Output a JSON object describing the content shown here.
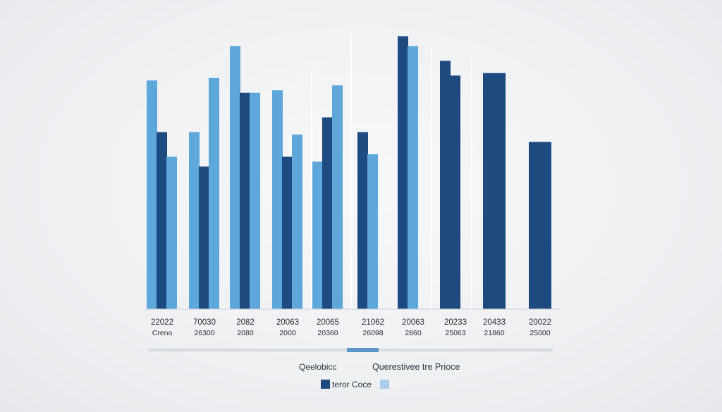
{
  "chart_data": {
    "type": "bar",
    "groups": [
      {
        "label": "22022",
        "sublabel": "Creno",
        "bars": [
          {
            "color": "light",
            "value": 93
          },
          {
            "color": "dark",
            "value": 72
          },
          {
            "color": "light",
            "value": 62
          }
        ]
      },
      {
        "label": "70030",
        "sublabel": "26300",
        "bars": [
          {
            "color": "light",
            "value": 72
          },
          {
            "color": "dark",
            "value": 58
          },
          {
            "color": "light",
            "value": 94
          }
        ]
      },
      {
        "label": "2082",
        "sublabel": "2080",
        "bars": [
          {
            "color": "light",
            "value": 107
          },
          {
            "color": "dark",
            "value": 88
          },
          {
            "color": "light",
            "value": 88
          }
        ]
      },
      {
        "label": "20063",
        "sublabel": "2000",
        "bars": [
          {
            "color": "light",
            "value": 89
          },
          {
            "color": "dark",
            "value": 62
          },
          {
            "color": "light",
            "value": 71
          }
        ]
      },
      {
        "label": "20065",
        "sublabel": "20360",
        "bars": [
          {
            "color": "light",
            "value": 60
          },
          {
            "color": "dark",
            "value": 78
          },
          {
            "color": "light",
            "value": 91
          }
        ]
      },
      {
        "label": "21062",
        "sublabel": "26098",
        "bars": [
          {
            "color": "dark",
            "value": 72
          },
          {
            "color": "light",
            "value": 63
          }
        ]
      },
      {
        "label": "20063",
        "sublabel": "2860",
        "bars": [
          {
            "color": "dark",
            "value": 111
          },
          {
            "color": "light",
            "value": 107
          }
        ]
      },
      {
        "label": "20233",
        "sublabel": "25063",
        "bars": [
          {
            "color": "dark",
            "value": 101
          },
          {
            "color": "dark",
            "value": 95
          }
        ]
      },
      {
        "label": "20433",
        "sublabel": "21860",
        "bars": [
          {
            "color": "dark",
            "value": 96
          }
        ]
      },
      {
        "label": "20022",
        "sublabel": "25000",
        "bars": [
          {
            "color": "dark",
            "value": 68
          }
        ]
      }
    ],
    "legend": {
      "top_left": "Qeelobicc",
      "top_right": "Querestivee tre Prioce",
      "item_dark": "teror Coce",
      "item_light": ""
    },
    "colors": {
      "dark": "#1d4a7f",
      "light": "#5ea7db"
    },
    "ylim": [
      0,
      120
    ]
  }
}
